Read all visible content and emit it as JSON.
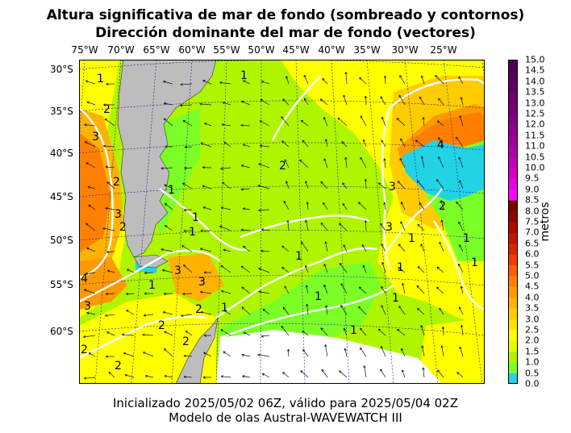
{
  "title_line1": "Altura significativa de mar de fondo (sombreado y contornos)",
  "title_line2": "Dirección dominante del mar de fondo (vectores)",
  "footer_line1": "Inicializado 2025/05/02 06Z, válido para 2025/05/04 02Z",
  "footer_line2": "Modelo de olas Austral-WAVEWATCH III",
  "longitude_labels": [
    "75°W",
    "70°W",
    "65°W",
    "60°W",
    "55°W",
    "50°W",
    "45°W",
    "40°W",
    "35°W",
    "30°W",
    "25°W"
  ],
  "latitude_labels": [
    "30°S",
    "35°S",
    "40°S",
    "45°S",
    "50°S",
    "55°S",
    "60°S"
  ],
  "colorbar": {
    "label": "metros",
    "ticks": [
      "15.0",
      "14.5",
      "14.0",
      "13.5",
      "13.0",
      "12.5",
      "12.0",
      "11.5",
      "11.0",
      "10.5",
      "10.0",
      "9.5",
      "9.0",
      "8.5",
      "8.0",
      "7.5",
      "7.0",
      "6.5",
      "6.0",
      "5.5",
      "5.0",
      "4.5",
      "4.0",
      "3.5",
      "3.0",
      "2.5",
      "2.0",
      "1.5",
      "1.0",
      "0.5",
      "0.0"
    ],
    "colors": [
      "#22d3e6",
      "#7cff26",
      "#b0f500",
      "#e0ff00",
      "#ffff00",
      "#ffe100",
      "#ffcc00",
      "#ffb300",
      "#ff9900",
      "#ff7f00",
      "#ff5e00",
      "#f23c00",
      "#d62800",
      "#c01800",
      "#a80e00",
      "#900600",
      "#7a0000",
      "#ff00ff",
      "#e600e6",
      "#d400c8",
      "#c000b8",
      "#b000a8",
      "#a00098",
      "#900090",
      "#820084",
      "#760078",
      "#6a006c",
      "#600062",
      "#55005a",
      "#4b0050"
    ]
  },
  "contour_labels": [
    "1",
    "2",
    "3",
    "4"
  ]
}
